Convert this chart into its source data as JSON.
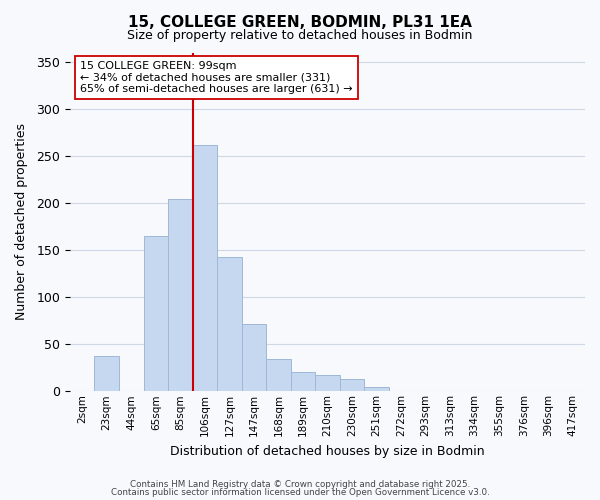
{
  "title": "15, COLLEGE GREEN, BODMIN, PL31 1EA",
  "subtitle": "Size of property relative to detached houses in Bodmin",
  "xlabel": "Distribution of detached houses by size in Bodmin",
  "ylabel": "Number of detached properties",
  "bin_labels": [
    "2sqm",
    "23sqm",
    "44sqm",
    "65sqm",
    "85sqm",
    "106sqm",
    "127sqm",
    "147sqm",
    "168sqm",
    "189sqm",
    "210sqm",
    "230sqm",
    "251sqm",
    "272sqm",
    "293sqm",
    "313sqm",
    "334sqm",
    "355sqm",
    "376sqm",
    "396sqm",
    "417sqm"
  ],
  "bar_values": [
    0,
    38,
    0,
    165,
    204,
    262,
    143,
    71,
    34,
    21,
    17,
    13,
    5,
    0,
    0,
    0,
    0,
    0,
    0,
    0,
    0
  ],
  "bar_color": "#c5d8f0",
  "bar_edge_color": "#a0b8d8",
  "vline_x": 4.5,
  "vline_color": "#cc0000",
  "ylim": [
    0,
    360
  ],
  "yticks": [
    0,
    50,
    100,
    150,
    200,
    250,
    300,
    350
  ],
  "annotation_title": "15 COLLEGE GREEN: 99sqm",
  "annotation_line1": "← 34% of detached houses are smaller (331)",
  "annotation_line2": "65% of semi-detached houses are larger (631) →",
  "footer1": "Contains HM Land Registry data © Crown copyright and database right 2025.",
  "footer2": "Contains public sector information licensed under the Open Government Licence v3.0.",
  "background_color": "#f7f9fc",
  "grid_color": "#d0d8e8"
}
